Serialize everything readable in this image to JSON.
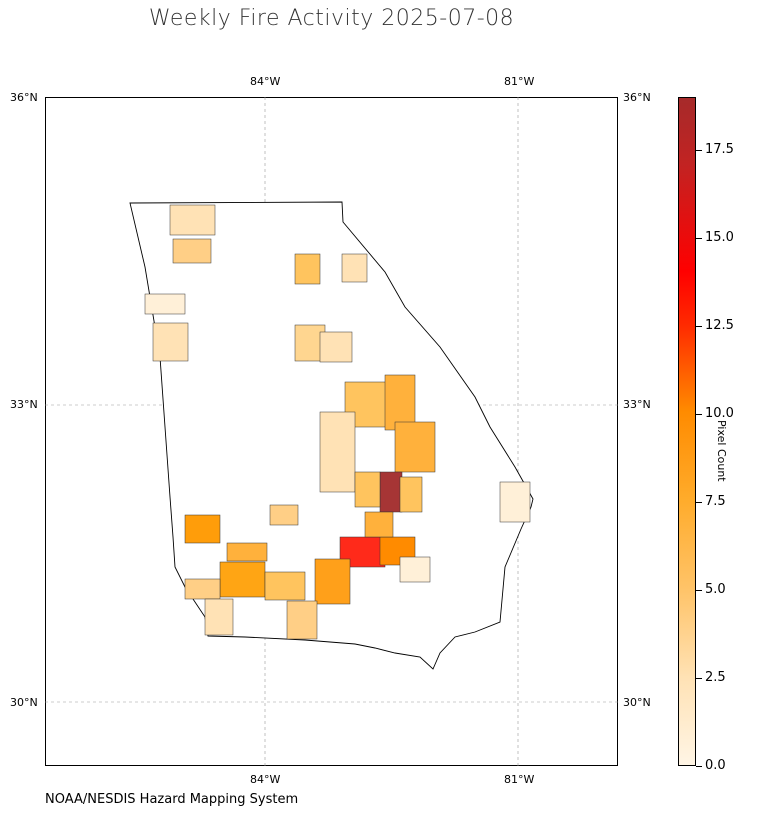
{
  "title": "Weekly Fire Activity 2025-07-08",
  "credit": "NOAA/NESDIS Hazard Mapping System",
  "map": {
    "region": "Georgia counties",
    "lon_ticks_top": [
      "84°W",
      "81°W"
    ],
    "lon_ticks_bottom": [
      "84°W",
      "81°W"
    ],
    "lat_ticks_left": [
      "36°N",
      "33°N",
      "30°N"
    ],
    "lat_ticks_right": [
      "36°N",
      "33°N",
      "30°N"
    ],
    "gridlines": true
  },
  "colorbar": {
    "label": "Pixel Count",
    "ticks": [
      "0.0",
      "2.5",
      "5.0",
      "7.5",
      "10.0",
      "12.5",
      "15.0",
      "17.5"
    ],
    "range": [
      0,
      19
    ],
    "colors": [
      "#fff5e5",
      "#ffcf86",
      "#ffa514",
      "#ff8b00",
      "#ff0000",
      "#a62a2a"
    ]
  }
}
